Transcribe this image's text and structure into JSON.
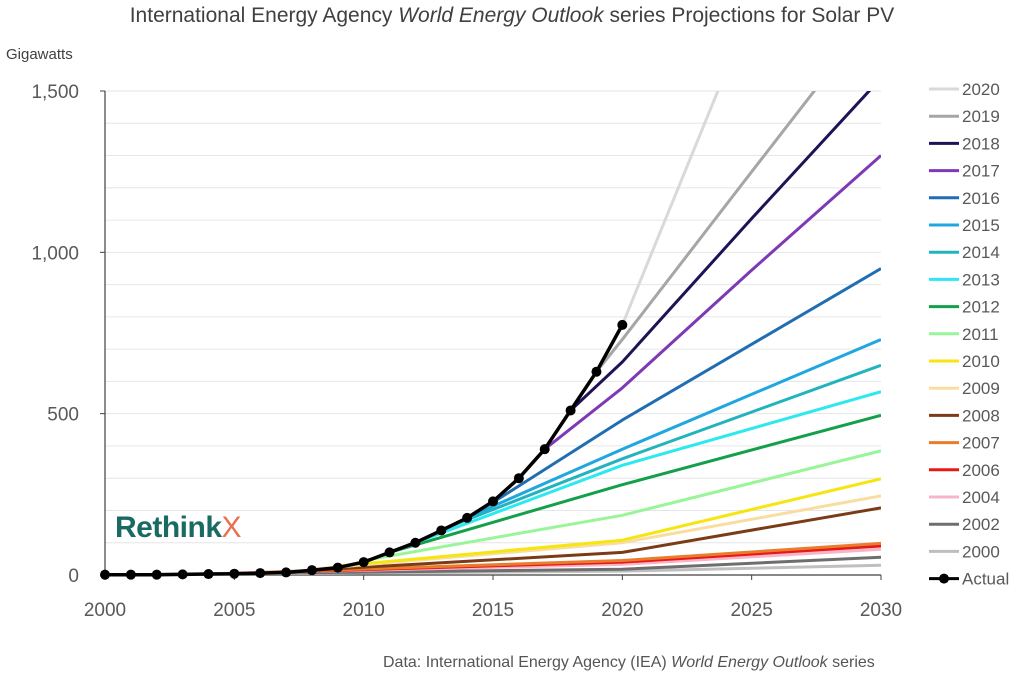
{
  "title": {
    "pre": "International Energy Agency ",
    "italic": "World Energy Outlook",
    "post": " series Projections for Solar PV"
  },
  "source": {
    "pre": "Data: International Energy Agency (IEA) ",
    "italic": "World Energy Outlook",
    "post": " series"
  },
  "logo": {
    "main": "Rethink",
    "accent": "X"
  },
  "chart_data": {
    "type": "line",
    "ylabel": "Gigawatts",
    "xlim": [
      2000,
      2030
    ],
    "ylim": [
      0,
      1500
    ],
    "x_ticks": [
      2000,
      2005,
      2010,
      2015,
      2020,
      2025,
      2030
    ],
    "x_tick_labels": [
      "2000",
      "2005",
      "2010",
      "2015",
      "2020",
      "2025",
      "2030"
    ],
    "y_ticks": [
      0,
      500,
      1000,
      1500
    ],
    "y_tick_labels": [
      "0",
      "500",
      "1,000",
      "1,500"
    ],
    "grid": "horizontal",
    "legend_position": "right",
    "series": [
      {
        "name": "2020",
        "color": "#d9d9d9",
        "x": [
          2019,
          2020,
          2024
        ],
        "y": [
          630,
          775,
          1560
        ]
      },
      {
        "name": "2019",
        "color": "#a6a6a6",
        "x": [
          2019,
          2020,
          2025,
          2028
        ],
        "y": [
          630,
          730,
          1250,
          1560
        ]
      },
      {
        "name": "2018",
        "color": "#1f1356",
        "x": [
          2018,
          2020,
          2025,
          2030
        ],
        "y": [
          510,
          660,
          1105,
          1540
        ]
      },
      {
        "name": "2017",
        "color": "#7e3ab4",
        "x": [
          2017,
          2020,
          2025,
          2030
        ],
        "y": [
          390,
          580,
          945,
          1300
        ]
      },
      {
        "name": "2016",
        "color": "#1f6eb2",
        "x": [
          2015,
          2020,
          2030
        ],
        "y": [
          225,
          480,
          950
        ]
      },
      {
        "name": "2015",
        "color": "#21a7e0",
        "x": [
          2014,
          2020,
          2030
        ],
        "y": [
          178,
          390,
          730
        ]
      },
      {
        "name": "2014",
        "color": "#22b3bd",
        "x": [
          2013,
          2020,
          2030
        ],
        "y": [
          140,
          360,
          650
        ]
      },
      {
        "name": "2013",
        "color": "#2ce8f0",
        "x": [
          2012,
          2020,
          2030
        ],
        "y": [
          100,
          340,
          568
        ]
      },
      {
        "name": "2012",
        "color": "#14a04b",
        "x": [
          2011,
          2020,
          2030
        ],
        "y": [
          70,
          280,
          495
        ]
      },
      {
        "name": "2011",
        "color": "#98f598",
        "x": [
          2010,
          2020,
          2030
        ],
        "y": [
          45,
          185,
          385
        ]
      },
      {
        "name": "2010",
        "color": "#f5e611",
        "x": [
          2009,
          2020,
          2030
        ],
        "y": [
          28,
          108,
          298
        ]
      },
      {
        "name": "2009",
        "color": "#f9dda0",
        "x": [
          2008,
          2020,
          2030
        ],
        "y": [
          18,
          100,
          245
        ]
      },
      {
        "name": "2008",
        "color": "#7a3b16",
        "x": [
          2008,
          2020,
          2030
        ],
        "y": [
          15,
          70,
          208
        ]
      },
      {
        "name": "2007",
        "color": "#e87d2e",
        "x": [
          2006,
          2020,
          2030
        ],
        "y": [
          8,
          45,
          98
        ]
      },
      {
        "name": "2006",
        "color": "#e81818",
        "x": [
          2005,
          2020,
          2030
        ],
        "y": [
          5,
          40,
          90
        ]
      },
      {
        "name": "2004",
        "color": "#f7b4c6",
        "x": [
          2003,
          2020,
          2030
        ],
        "y": [
          2,
          33,
          80
        ]
      },
      {
        "name": "2002",
        "color": "#6e6e6e",
        "x": [
          2000,
          2020,
          2030
        ],
        "y": [
          0,
          18,
          55
        ]
      },
      {
        "name": "2000",
        "color": "#bfbfbf",
        "x": [
          2000,
          2020,
          2030
        ],
        "y": [
          0,
          12,
          30
        ]
      },
      {
        "name": "Actual",
        "color": "#000000",
        "markers": true,
        "x": [
          2000,
          2001,
          2002,
          2003,
          2004,
          2005,
          2006,
          2007,
          2008,
          2009,
          2010,
          2011,
          2012,
          2013,
          2014,
          2015,
          2016,
          2017,
          2018,
          2019,
          2020
        ],
        "y": [
          1,
          1,
          1,
          2,
          3,
          4,
          6,
          8,
          15,
          23,
          40,
          70,
          100,
          138,
          177,
          228,
          300,
          390,
          510,
          630,
          775
        ]
      }
    ]
  }
}
